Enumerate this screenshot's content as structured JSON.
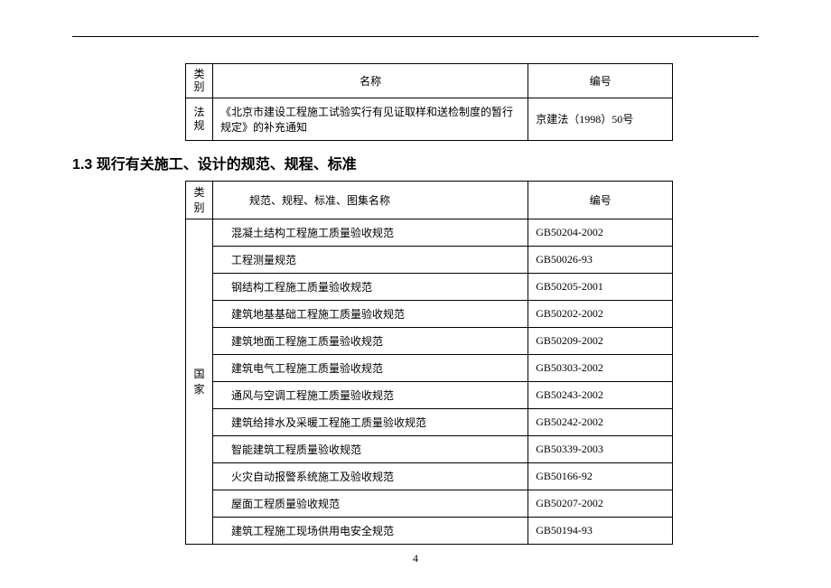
{
  "page_number": "4",
  "table1": {
    "header": {
      "category": "类\n别",
      "name": "名称",
      "code": "编号"
    },
    "rows": [
      {
        "category": "法\n规",
        "name": "《北京市建设工程施工试验实行有见证取样和送检制度的暂行规定》的补充通知",
        "code": "京建法（1998）50号"
      }
    ]
  },
  "section_title": "1.3 现行有关施工、设计的规范、规程、标准",
  "table2": {
    "header": {
      "category": "类\n别",
      "name": "规范、规程、标准、图集名称",
      "code": "编号"
    },
    "category_label": "国\n家",
    "rows": [
      {
        "name": "混凝土结构工程施工质量验收规范",
        "code": "GB50204-2002"
      },
      {
        "name": "工程测量规范",
        "code": "GB50026-93"
      },
      {
        "name": "钢结构工程施工质量验收规范",
        "code": "GB50205-2001"
      },
      {
        "name": "建筑地基基础工程施工质量验收规范",
        "code": "GB50202-2002"
      },
      {
        "name": "建筑地面工程施工质量验收规范",
        "code": "GB50209-2002"
      },
      {
        "name": "建筑电气工程施工质量验收规范",
        "code": "GB50303-2002"
      },
      {
        "name": "通风与空调工程施工质量验收规范",
        "code": "GB50243-2002"
      },
      {
        "name": "建筑给排水及采暖工程施工质量验收规范",
        "code": "GB50242-2002"
      },
      {
        "name": "智能建筑工程质量验收规范",
        "code": "GB50339-2003"
      },
      {
        "name": "火灾自动报警系统施工及验收规范",
        "code": "GB50166-92"
      },
      {
        "name": "屋面工程质量验收规范",
        "code": "GB50207-2002"
      },
      {
        "name": "建筑工程施工现场供用电安全规范",
        "code": "GB50194-93"
      }
    ]
  }
}
